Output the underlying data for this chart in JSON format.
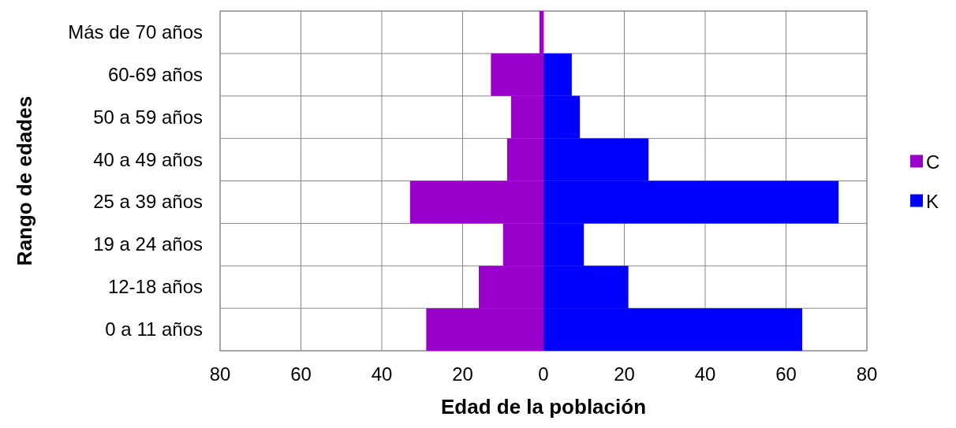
{
  "chart_data": {
    "type": "bar",
    "orientation": "horizontal",
    "stacked": true,
    "xlabel": "Edad de la población",
    "ylabel": "Rango de edades",
    "categories": [
      "Más de 70 años",
      "60-69 años",
      "50 a 59 años",
      "40 a 49 años",
      "25 a 39 años",
      "19 a 24 años",
      "12-18 años",
      "0 a 11 años"
    ],
    "series": [
      {
        "name": "C",
        "color": "#9900cc",
        "values": [
          -1,
          -13,
          -8,
          -9,
          -33,
          -10,
          -16,
          -29
        ]
      },
      {
        "name": "K",
        "color": "#0000ff",
        "values": [
          0,
          7,
          9,
          26,
          73,
          10,
          21,
          64
        ]
      }
    ],
    "xlim": [
      -80,
      80
    ],
    "xticks": [
      {
        "value": -80,
        "label": "80"
      },
      {
        "value": -60,
        "label": "60"
      },
      {
        "value": -40,
        "label": "40"
      },
      {
        "value": -20,
        "label": "20"
      },
      0,
      20,
      40,
      60,
      80
    ],
    "grid": true,
    "legend": "right"
  }
}
